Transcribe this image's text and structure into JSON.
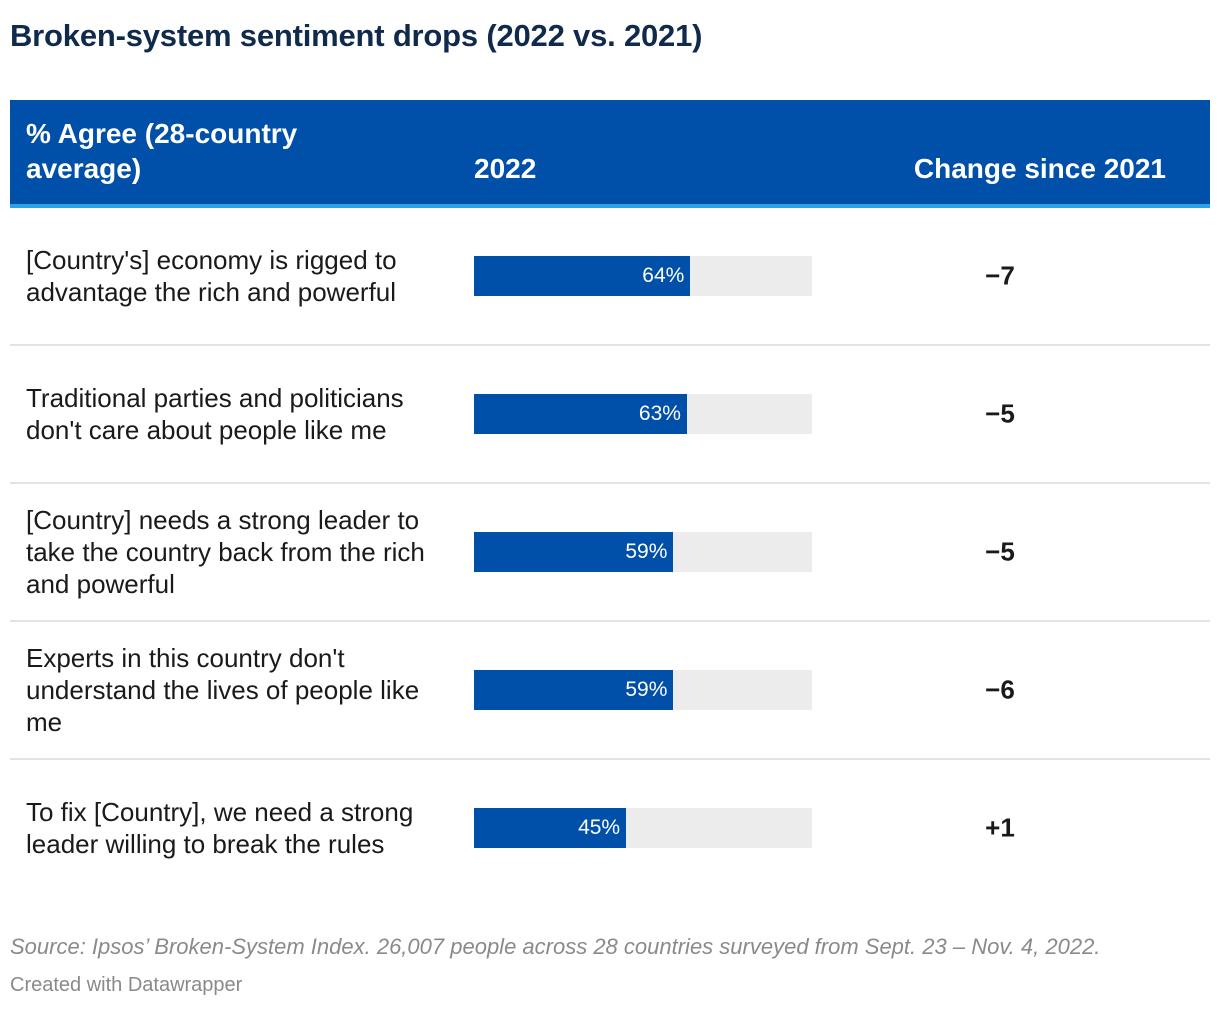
{
  "title": "Broken-system sentiment drops (2022 vs. 2021)",
  "colors": {
    "header_bg": "#0050aa",
    "header_rule": "#2aa3e8",
    "bar": "#0050aa",
    "track": "#ececec",
    "title": "#102a4c"
  },
  "header": {
    "label": "% Agree (28-country average)",
    "year": "2022",
    "change": "Change since 2021"
  },
  "chart_data": {
    "type": "table",
    "title": "Broken-system sentiment drops (2022 vs. 2021)",
    "columns": [
      "% Agree (28-country average)",
      "2022",
      "Change since 2021"
    ],
    "bar_max": 100,
    "rows": [
      {
        "label": "[Country's] economy is rigged to advantage the rich and powerful",
        "value": 64,
        "value_label": "64%",
        "change": "−7"
      },
      {
        "label": "Traditional parties and politicians don't care about people like me",
        "value": 63,
        "value_label": "63%",
        "change": "−5"
      },
      {
        "label": "[Country] needs a strong leader to take the country back from the rich and powerful",
        "value": 59,
        "value_label": "59%",
        "change": "−5"
      },
      {
        "label": "Experts in this country don't understand the lives of people like me",
        "value": 59,
        "value_label": "59%",
        "change": "−6"
      },
      {
        "label": "To fix [Country], we need a strong leader willing to break the rules",
        "value": 45,
        "value_label": "45%",
        "change": "+1"
      }
    ]
  },
  "source": "Source: Ipsos’ Broken-System Index. 26,007 people across 28 countries surveyed from Sept. 23 – Nov. 4, 2022.",
  "credit": "Created with Datawrapper"
}
